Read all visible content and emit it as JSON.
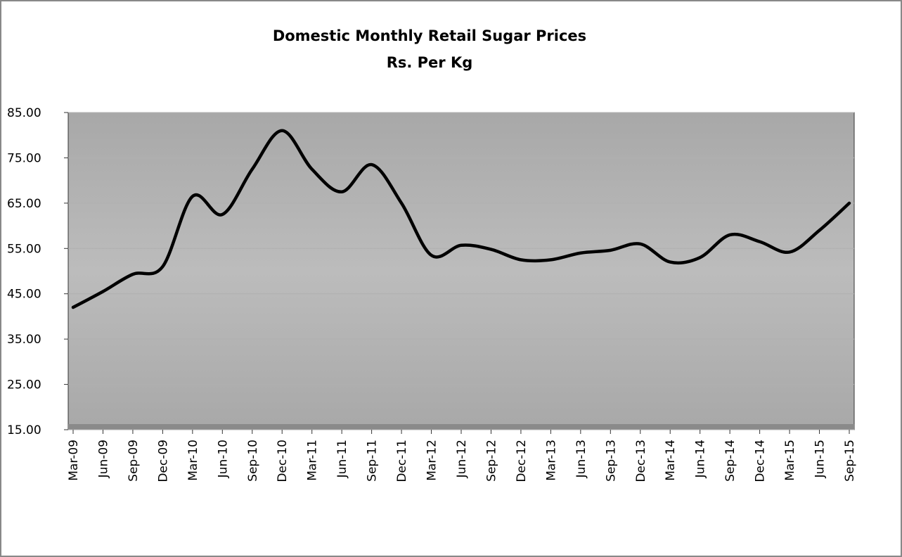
{
  "chart_data": {
    "type": "line",
    "title": "Domestic Monthly Retail Sugar Prices",
    "subtitle": "Rs. Per Kg",
    "categories": [
      "Mar-09",
      "Jun-09",
      "Sep-09",
      "Dec-09",
      "Mar-10",
      "Jun-10",
      "Sep-10",
      "Dec-10",
      "Mar-11",
      "Jun-11",
      "Sep-11",
      "Dec-11",
      "Mar-12",
      "Jun-12",
      "Sep-12",
      "Dec-12",
      "Mar-13",
      "Jun-13",
      "Sep-13",
      "Dec-13",
      "Mar-14",
      "Jun-14",
      "Sep-14",
      "Dec-14",
      "Mar-15",
      "Jun-15",
      "Sep-15"
    ],
    "series": [
      {
        "color": "#000000",
        "values": [
          42,
          45.5,
          49.3,
          51,
          66.5,
          62.5,
          72.5,
          81,
          72.5,
          67.5,
          73.5,
          65,
          53.5,
          55.7,
          54.8,
          52.5,
          52.5,
          54,
          54.6,
          56,
          52,
          53,
          58,
          56.5,
          54.2,
          59,
          65
        ]
      }
    ],
    "ylim": [
      15,
      85
    ],
    "yticks": [
      {
        "value": 15,
        "label": "15.00"
      },
      {
        "value": 25,
        "label": "25.00"
      },
      {
        "value": 35,
        "label": "35.00"
      },
      {
        "value": 45,
        "label": "45.00"
      },
      {
        "value": 55,
        "label": "55.00"
      },
      {
        "value": 65,
        "label": "65.00"
      },
      {
        "value": 75,
        "label": "75.00"
      },
      {
        "value": 85,
        "label": "85.00"
      }
    ],
    "grid": true
  }
}
